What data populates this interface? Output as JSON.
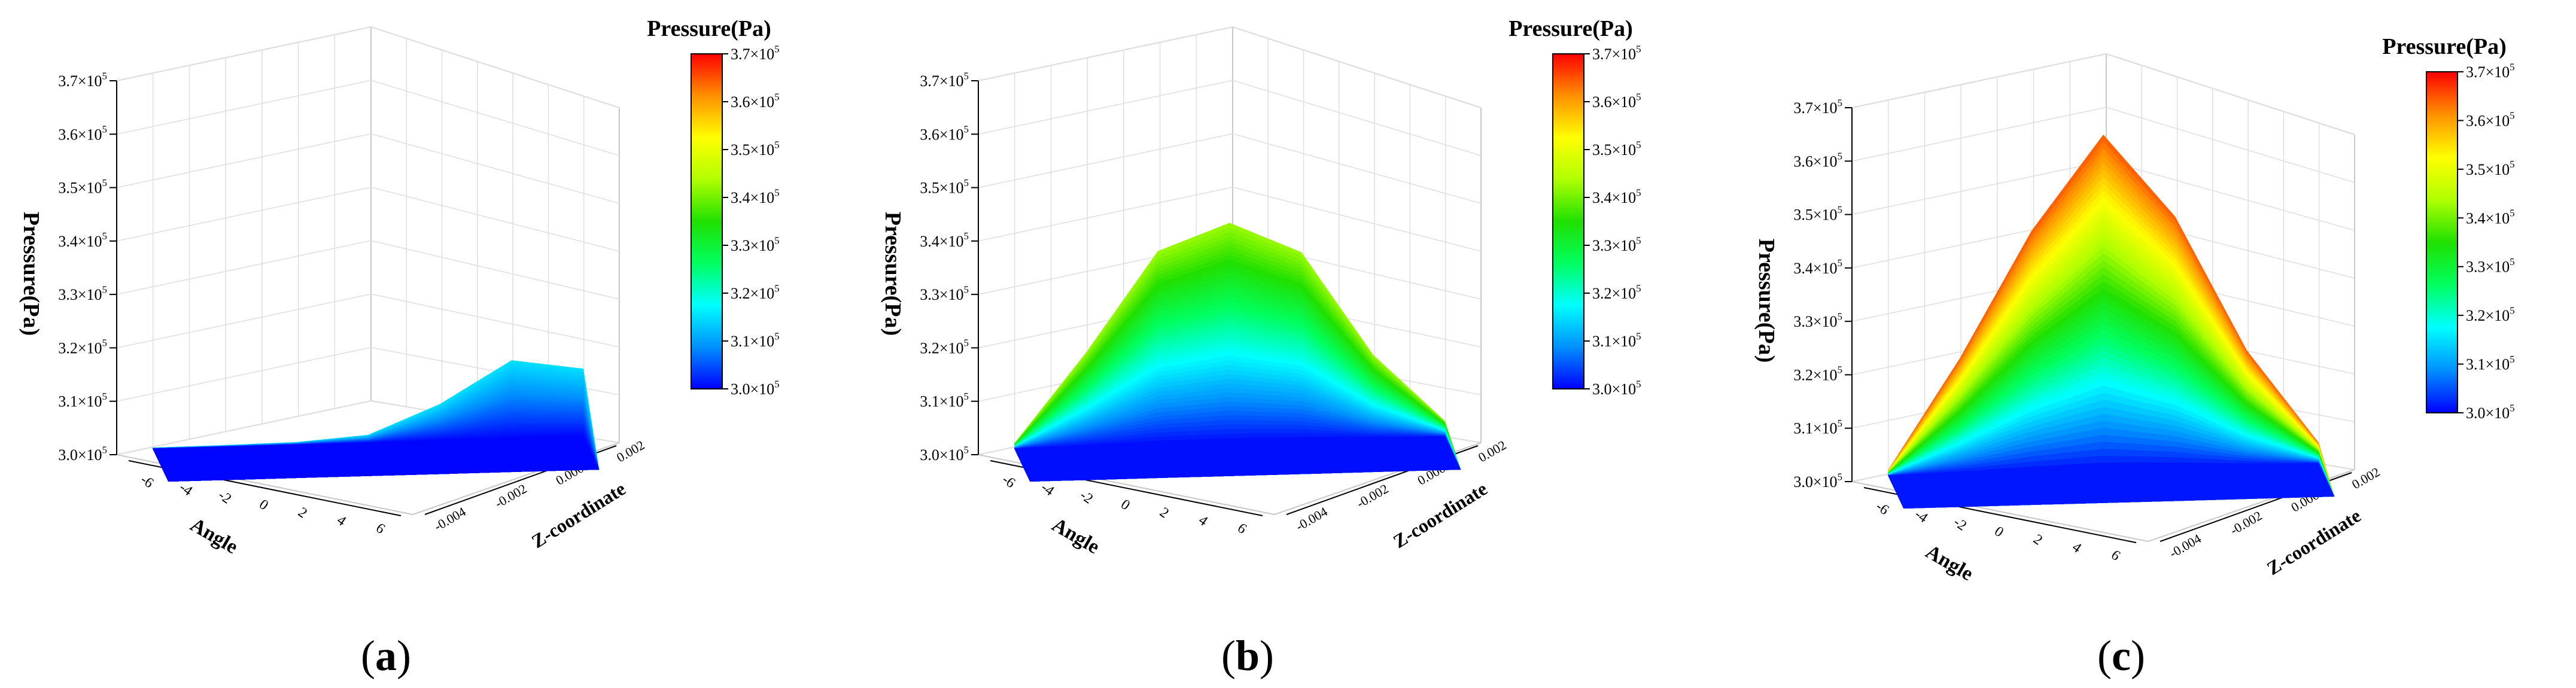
{
  "figure": {
    "colorbar_title": "Pressure(Pa)",
    "z_axis_label": "Pressure(Pa)",
    "angle_axis_label": "Angle",
    "zcoord_axis_label": "Z-coordinate",
    "angle_ticks": [
      "-6",
      "-4",
      "-2",
      "0",
      "2",
      "4",
      "6"
    ],
    "zcoord_ticks": [
      "-0.004",
      "-0.002",
      "0.000",
      "0.002"
    ],
    "pressure_ticks": [
      {
        "m": "3.0",
        "v": 300000
      },
      {
        "m": "3.1",
        "v": 310000
      },
      {
        "m": "3.2",
        "v": 320000
      },
      {
        "m": "3.3",
        "v": 330000
      },
      {
        "m": "3.4",
        "v": 340000
      },
      {
        "m": "3.5",
        "v": 350000
      },
      {
        "m": "3.6",
        "v": 360000
      },
      {
        "m": "3.7",
        "v": 370000
      }
    ],
    "tick_base": "×10",
    "tick_exp": "5",
    "colorscale": [
      "#0000ff",
      "#0090ff",
      "#00ffff",
      "#00ff60",
      "#20e000",
      "#b0ff00",
      "#ffff00",
      "#ff9000",
      "#ff0000"
    ]
  },
  "chart_data": [
    {
      "type": "surface",
      "caption": "(a)",
      "zlabel": "Pressure(Pa)",
      "xlabel": "Angle",
      "ylabel": "Z-coordinate",
      "zlim": [
        300000,
        370000
      ],
      "xlim": [
        -7,
        7
      ],
      "ylim": [
        -0.004,
        0.003
      ],
      "colorbar_range": [
        300000,
        370000
      ],
      "angle_samples": [
        -6,
        -4,
        -2,
        0,
        2,
        4,
        6
      ],
      "peak_profile": [
        300200,
        300300,
        300500,
        301500,
        307000,
        315000,
        313000
      ],
      "notes_peak": 316000
    },
    {
      "type": "surface",
      "caption": "(b)",
      "zlabel": "Pressure(Pa)",
      "xlabel": "Angle",
      "ylabel": "Z-coordinate",
      "zlim": [
        300000,
        370000
      ],
      "xlim": [
        -7,
        7
      ],
      "ylim": [
        -0.004,
        0.003
      ],
      "colorbar_range": [
        300000,
        370000
      ],
      "angle_samples": [
        -6,
        -4,
        -2,
        0,
        2,
        4,
        6
      ],
      "peak_profile": [
        301000,
        318000,
        337000,
        342000,
        336000,
        316000,
        303000
      ],
      "notes_peak": 343000
    },
    {
      "type": "surface",
      "caption": "(c)",
      "zlabel": "Pressure(Pa)",
      "xlabel": "Angle",
      "ylabel": "Z-coordinate",
      "zlim": [
        300000,
        370000
      ],
      "xlim": [
        -7,
        7
      ],
      "ylim": [
        -0.004,
        0.003
      ],
      "colorbar_range": [
        300000,
        370000
      ],
      "angle_samples": [
        -6,
        -4,
        -2,
        0,
        2,
        4,
        6
      ],
      "peak_profile": [
        301000,
        322000,
        346000,
        364000,
        348000,
        322000,
        304000
      ],
      "notes_peak": 365000
    }
  ]
}
